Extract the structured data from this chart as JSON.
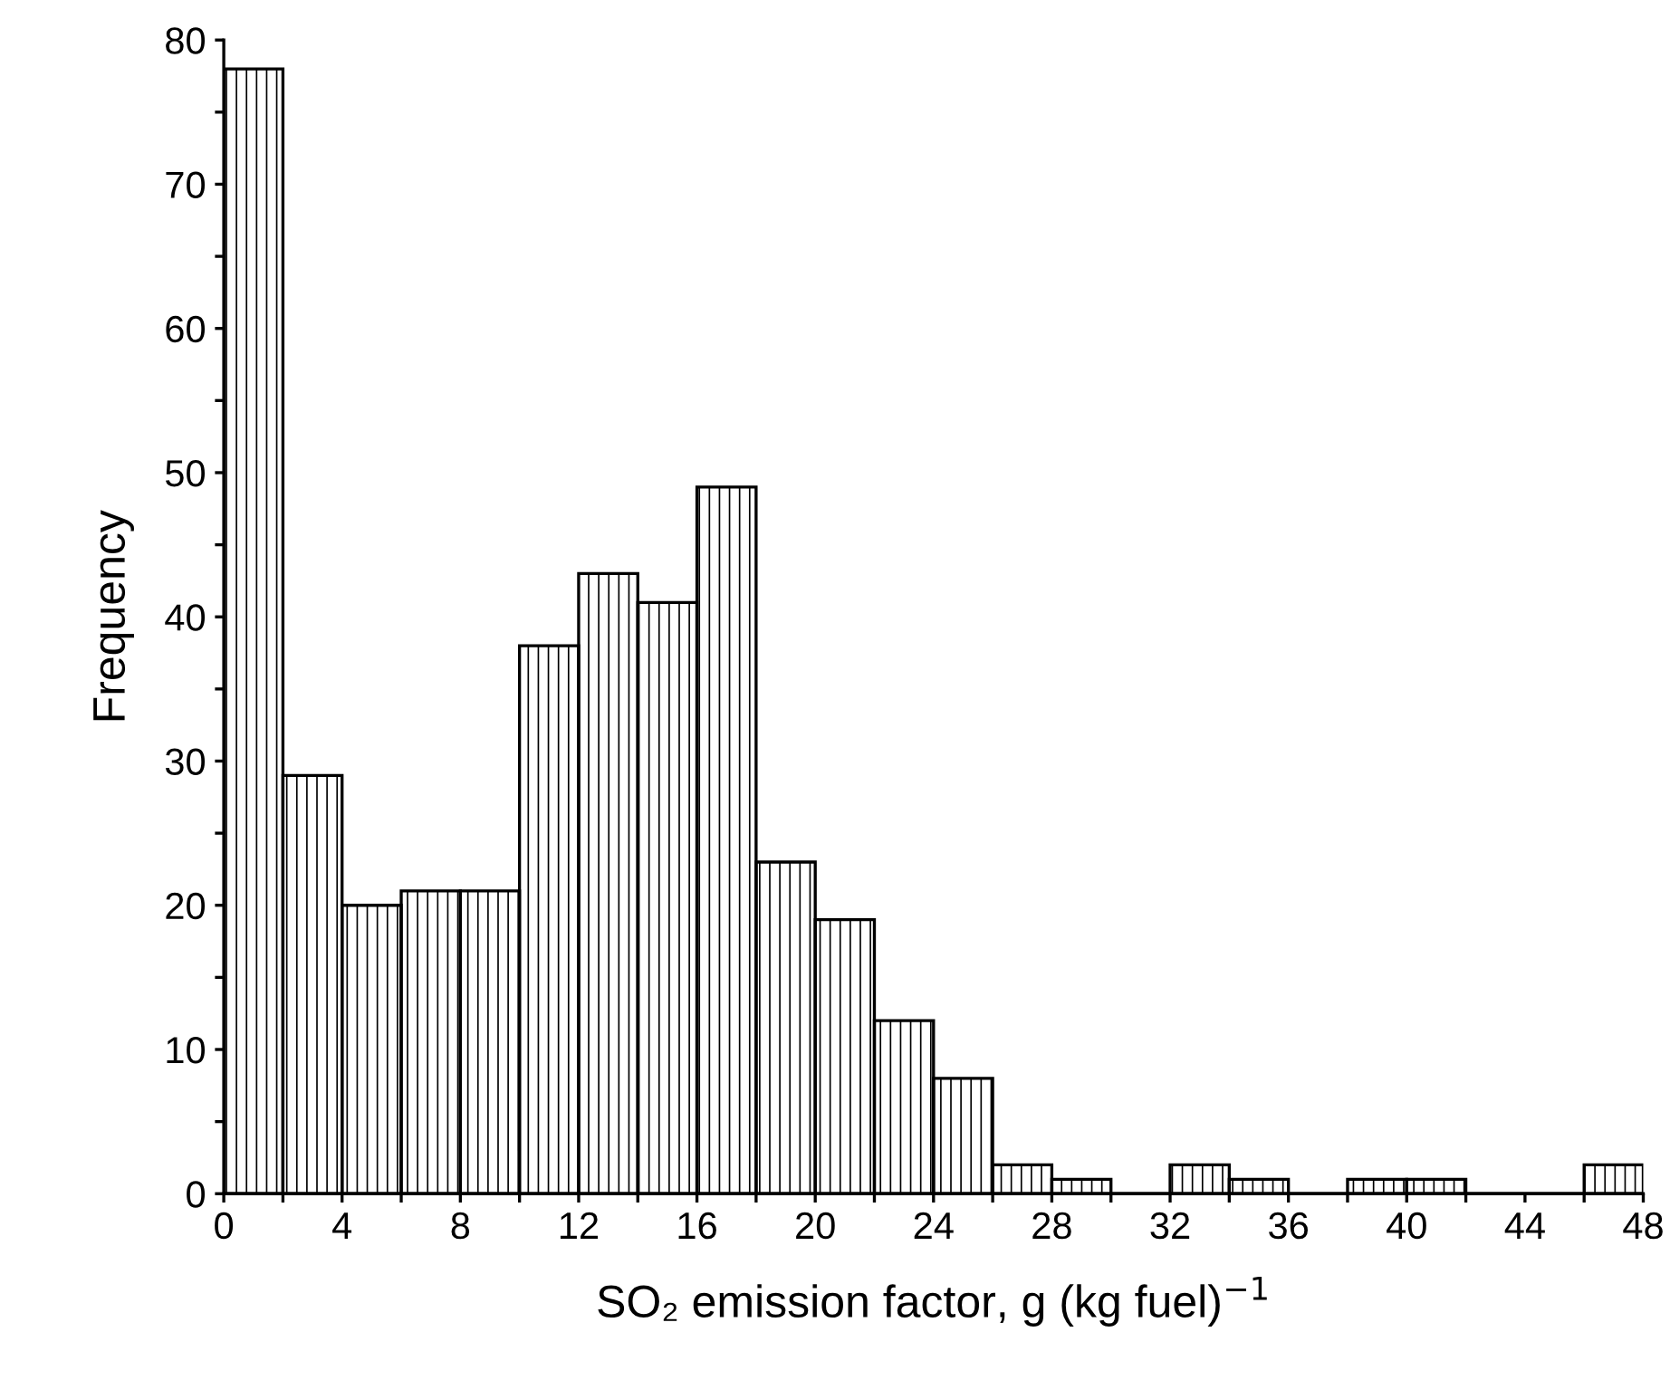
{
  "chart_data": {
    "type": "histogram",
    "xlabel": "SO₂ emission factor, g (kg fuel)$^{−1}$",
    "ylabel": "Frequency",
    "bins": [
      0,
      2,
      4,
      6,
      8,
      10,
      12,
      14,
      16,
      18,
      20,
      22,
      24,
      26,
      28,
      30,
      32,
      34,
      36,
      38,
      40,
      42,
      44,
      46,
      48
    ],
    "values": [
      78,
      29,
      20,
      21,
      21,
      38,
      43,
      41,
      49,
      23,
      19,
      12,
      8,
      2,
      1,
      0,
      2,
      1,
      0,
      1,
      1,
      0,
      0,
      2
    ],
    "color": "#000000",
    "xlim": [
      0,
      48
    ],
    "xticks": [
      0,
      {
        "value": 2,
        "label": null
      },
      4,
      {
        "value": 6,
        "label": null
      },
      8,
      {
        "value": 10,
        "label": null
      },
      12,
      {
        "value": 14,
        "label": null
      },
      16,
      {
        "value": 18,
        "label": null
      },
      20,
      {
        "value": 22,
        "label": null
      },
      24,
      {
        "value": 26,
        "label": null
      },
      28,
      {
        "value": 30,
        "label": null
      },
      32,
      {
        "value": 34,
        "label": null
      },
      36,
      {
        "value": 38,
        "label": null
      },
      40,
      {
        "value": 42,
        "label": null
      },
      44,
      {
        "value": 46,
        "label": null
      },
      48
    ],
    "ylim": [
      0,
      80
    ],
    "yticks": [
      0,
      {
        "value": 5,
        "label": null
      },
      10,
      {
        "value": 15,
        "label": null
      },
      20,
      {
        "value": 25,
        "label": null
      },
      30,
      {
        "value": 35,
        "label": null
      },
      40,
      {
        "value": 45,
        "label": null
      },
      50,
      {
        "value": 55,
        "label": null
      },
      60,
      {
        "value": 65,
        "label": null
      },
      70,
      {
        "value": 75,
        "label": null
      },
      80
    ],
    "grid": false
  }
}
